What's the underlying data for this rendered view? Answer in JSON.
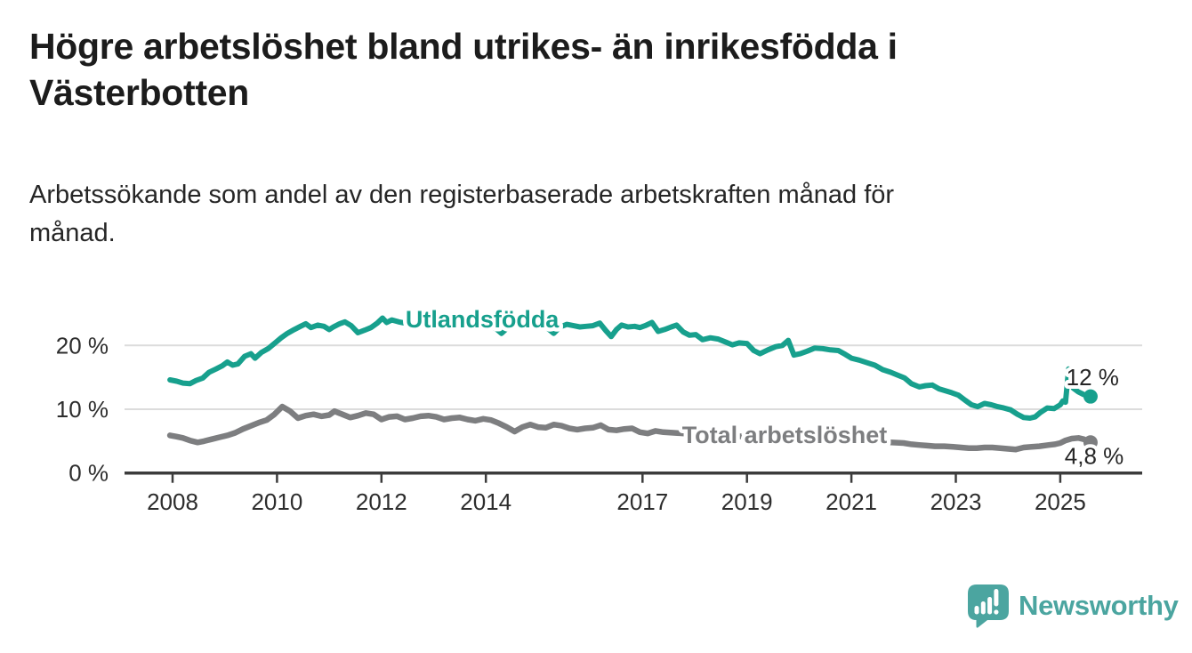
{
  "header": {
    "title_line1": "Högre arbetslöshet bland utrikes- än inrikesfödda i",
    "title_line2": "Västerbotten",
    "subtitle_line1": "Arbetssökande som andel av den registerbaserade arbetskraften månad för",
    "subtitle_line2": "månad."
  },
  "footer": {
    "brand": "Newsworthy",
    "logo_icon": "newsworthy-speech-bubble-bar-chart-icon",
    "brand_color": "#4ba5a0"
  },
  "chart_data": {
    "type": "line",
    "title": "Högre arbetslöshet bland utrikes- än inrikesfödda i Västerbotten",
    "subtitle": "Arbetssökande som andel av den registerbaserade arbetskraften månad för månad.",
    "unit": "%",
    "grid": true,
    "grid_color": "#dcdcdc",
    "axis_color": "#3c3c3c",
    "text_color": "#2d2d2d",
    "annotation_color": "#262626",
    "x_axis": {
      "ticks": [
        2008,
        2010,
        2012,
        2014,
        2017,
        2019,
        2021,
        2023,
        2025
      ],
      "tick_labels": [
        "2008",
        "2010",
        "2012",
        "2014",
        "2017",
        "2019",
        "2021",
        "2023",
        "2025"
      ],
      "min": 2007.1,
      "max": 2026.6
    },
    "y_axis": {
      "ticks": [
        0,
        10,
        20
      ],
      "tick_labels": [
        "0 %",
        "10 %",
        "20 %"
      ],
      "min": 0,
      "max": 27
    },
    "series": [
      {
        "name": "Utlandsfödda",
        "color": "#17a08d",
        "end_label": "12 %",
        "end_value": 12.0,
        "label_pos": {
          "x": 2013.93,
          "y": 24.1
        },
        "end_label_pos": {
          "x": 2025.62,
          "y": 15.0
        },
        "points": [
          [
            2007.95,
            14.6
          ],
          [
            2008.08,
            14.4
          ],
          [
            2008.2,
            14.1
          ],
          [
            2008.33,
            14.0
          ],
          [
            2008.45,
            14.5
          ],
          [
            2008.58,
            14.9
          ],
          [
            2008.7,
            15.8
          ],
          [
            2008.83,
            16.3
          ],
          [
            2008.95,
            16.8
          ],
          [
            2009.05,
            17.4
          ],
          [
            2009.15,
            16.9
          ],
          [
            2009.25,
            17.1
          ],
          [
            2009.38,
            18.3
          ],
          [
            2009.5,
            18.7
          ],
          [
            2009.58,
            18.0
          ],
          [
            2009.7,
            18.9
          ],
          [
            2009.83,
            19.5
          ],
          [
            2009.95,
            20.3
          ],
          [
            2010.08,
            21.2
          ],
          [
            2010.2,
            21.9
          ],
          [
            2010.33,
            22.5
          ],
          [
            2010.45,
            23.0
          ],
          [
            2010.55,
            23.4
          ],
          [
            2010.65,
            22.8
          ],
          [
            2010.78,
            23.2
          ],
          [
            2010.9,
            23.0
          ],
          [
            2011.0,
            22.5
          ],
          [
            2011.08,
            22.9
          ],
          [
            2011.2,
            23.4
          ],
          [
            2011.3,
            23.7
          ],
          [
            2011.42,
            23.1
          ],
          [
            2011.55,
            22.0
          ],
          [
            2011.68,
            22.4
          ],
          [
            2011.8,
            22.8
          ],
          [
            2011.92,
            23.5
          ],
          [
            2012.02,
            24.3
          ],
          [
            2012.1,
            23.6
          ],
          [
            2012.2,
            24.0
          ],
          [
            2012.33,
            23.7
          ],
          [
            2012.45,
            23.5
          ],
          [
            2012.58,
            23.7
          ],
          [
            2012.7,
            23.9
          ],
          [
            2012.83,
            23.6
          ],
          [
            2012.95,
            23.4
          ],
          [
            2013.08,
            23.7
          ],
          [
            2013.2,
            23.9
          ],
          [
            2013.33,
            23.5
          ],
          [
            2013.45,
            23.7
          ],
          [
            2013.58,
            23.4
          ],
          [
            2013.7,
            23.2
          ],
          [
            2013.83,
            23.6
          ],
          [
            2013.95,
            23.5
          ],
          [
            2014.08,
            23.1
          ],
          [
            2014.2,
            22.6
          ],
          [
            2014.3,
            21.9
          ],
          [
            2014.42,
            22.8
          ],
          [
            2014.55,
            23.3
          ],
          [
            2014.68,
            23.6
          ],
          [
            2014.8,
            23.4
          ],
          [
            2014.92,
            23.2
          ],
          [
            2015.05,
            23.4
          ],
          [
            2015.18,
            22.7
          ],
          [
            2015.3,
            21.9
          ],
          [
            2015.42,
            22.9
          ],
          [
            2015.55,
            23.3
          ],
          [
            2015.68,
            23.1
          ],
          [
            2015.8,
            22.9
          ],
          [
            2015.92,
            23.0
          ],
          [
            2016.05,
            23.1
          ],
          [
            2016.18,
            23.5
          ],
          [
            2016.3,
            22.3
          ],
          [
            2016.4,
            21.4
          ],
          [
            2016.5,
            22.5
          ],
          [
            2016.6,
            23.2
          ],
          [
            2016.72,
            22.9
          ],
          [
            2016.85,
            23.0
          ],
          [
            2016.95,
            22.8
          ],
          [
            2017.05,
            23.1
          ],
          [
            2017.18,
            23.6
          ],
          [
            2017.3,
            22.2
          ],
          [
            2017.42,
            22.5
          ],
          [
            2017.55,
            22.9
          ],
          [
            2017.65,
            23.2
          ],
          [
            2017.78,
            22.1
          ],
          [
            2017.9,
            21.6
          ],
          [
            2018.02,
            21.7
          ],
          [
            2018.15,
            20.9
          ],
          [
            2018.3,
            21.2
          ],
          [
            2018.45,
            21.0
          ],
          [
            2018.6,
            20.5
          ],
          [
            2018.72,
            20.1
          ],
          [
            2018.85,
            20.4
          ],
          [
            2019.0,
            20.3
          ],
          [
            2019.13,
            19.2
          ],
          [
            2019.25,
            18.7
          ],
          [
            2019.4,
            19.3
          ],
          [
            2019.55,
            19.8
          ],
          [
            2019.68,
            20.0
          ],
          [
            2019.79,
            20.8
          ],
          [
            2019.9,
            18.5
          ],
          [
            2020.02,
            18.7
          ],
          [
            2020.15,
            19.1
          ],
          [
            2020.3,
            19.6
          ],
          [
            2020.45,
            19.5
          ],
          [
            2020.6,
            19.3
          ],
          [
            2020.75,
            19.2
          ],
          [
            2020.88,
            18.6
          ],
          [
            2021.0,
            18.0
          ],
          [
            2021.15,
            17.7
          ],
          [
            2021.3,
            17.3
          ],
          [
            2021.45,
            16.9
          ],
          [
            2021.6,
            16.2
          ],
          [
            2021.75,
            15.8
          ],
          [
            2021.9,
            15.3
          ],
          [
            2022.02,
            14.9
          ],
          [
            2022.15,
            14.0
          ],
          [
            2022.3,
            13.5
          ],
          [
            2022.42,
            13.7
          ],
          [
            2022.55,
            13.8
          ],
          [
            2022.68,
            13.2
          ],
          [
            2022.8,
            12.9
          ],
          [
            2022.92,
            12.6
          ],
          [
            2023.05,
            12.2
          ],
          [
            2023.18,
            11.4
          ],
          [
            2023.3,
            10.7
          ],
          [
            2023.42,
            10.4
          ],
          [
            2023.55,
            10.9
          ],
          [
            2023.68,
            10.7
          ],
          [
            2023.8,
            10.4
          ],
          [
            2023.92,
            10.2
          ],
          [
            2024.05,
            9.9
          ],
          [
            2024.18,
            9.2
          ],
          [
            2024.3,
            8.7
          ],
          [
            2024.42,
            8.6
          ],
          [
            2024.52,
            8.8
          ],
          [
            2024.62,
            9.5
          ],
          [
            2024.75,
            10.2
          ],
          [
            2024.88,
            10.1
          ],
          [
            2025.0,
            10.7
          ],
          [
            2025.05,
            11.3
          ],
          [
            2025.1,
            11.1
          ],
          [
            2025.16,
            16.3
          ],
          [
            2025.25,
            13.3
          ],
          [
            2025.35,
            12.7
          ],
          [
            2025.45,
            12.3
          ],
          [
            2025.58,
            12.0
          ]
        ]
      },
      {
        "name": "Total arbetslöshet",
        "color": "#7d7e80",
        "end_label": "4,8 %",
        "end_value": 4.8,
        "label_pos": {
          "x": 2019.72,
          "y": 5.95
        },
        "end_label_pos": {
          "x": 2025.65,
          "y": 2.7
        },
        "points": [
          [
            2007.95,
            5.9
          ],
          [
            2008.08,
            5.7
          ],
          [
            2008.2,
            5.5
          ],
          [
            2008.33,
            5.1
          ],
          [
            2008.48,
            4.8
          ],
          [
            2008.6,
            5.0
          ],
          [
            2008.75,
            5.3
          ],
          [
            2008.9,
            5.6
          ],
          [
            2009.05,
            5.9
          ],
          [
            2009.2,
            6.3
          ],
          [
            2009.35,
            6.9
          ],
          [
            2009.5,
            7.4
          ],
          [
            2009.65,
            7.9
          ],
          [
            2009.8,
            8.3
          ],
          [
            2009.95,
            9.2
          ],
          [
            2010.1,
            10.4
          ],
          [
            2010.25,
            9.7
          ],
          [
            2010.4,
            8.6
          ],
          [
            2010.55,
            9.0
          ],
          [
            2010.7,
            9.2
          ],
          [
            2010.85,
            8.9
          ],
          [
            2011.0,
            9.1
          ],
          [
            2011.1,
            9.7
          ],
          [
            2011.25,
            9.2
          ],
          [
            2011.4,
            8.7
          ],
          [
            2011.55,
            9.0
          ],
          [
            2011.7,
            9.4
          ],
          [
            2011.85,
            9.2
          ],
          [
            2012.0,
            8.4
          ],
          [
            2012.15,
            8.8
          ],
          [
            2012.3,
            8.9
          ],
          [
            2012.45,
            8.4
          ],
          [
            2012.6,
            8.6
          ],
          [
            2012.75,
            8.9
          ],
          [
            2012.9,
            9.0
          ],
          [
            2013.05,
            8.8
          ],
          [
            2013.2,
            8.4
          ],
          [
            2013.35,
            8.6
          ],
          [
            2013.5,
            8.7
          ],
          [
            2013.65,
            8.4
          ],
          [
            2013.8,
            8.2
          ],
          [
            2013.95,
            8.5
          ],
          [
            2014.1,
            8.3
          ],
          [
            2014.25,
            7.8
          ],
          [
            2014.4,
            7.2
          ],
          [
            2014.55,
            6.5
          ],
          [
            2014.7,
            7.2
          ],
          [
            2014.85,
            7.6
          ],
          [
            2015.0,
            7.2
          ],
          [
            2015.15,
            7.1
          ],
          [
            2015.3,
            7.6
          ],
          [
            2015.45,
            7.4
          ],
          [
            2015.6,
            7.0
          ],
          [
            2015.75,
            6.8
          ],
          [
            2015.9,
            7.0
          ],
          [
            2016.05,
            7.1
          ],
          [
            2016.2,
            7.5
          ],
          [
            2016.35,
            6.8
          ],
          [
            2016.5,
            6.7
          ],
          [
            2016.65,
            6.9
          ],
          [
            2016.8,
            7.0
          ],
          [
            2016.95,
            6.4
          ],
          [
            2017.1,
            6.2
          ],
          [
            2017.25,
            6.6
          ],
          [
            2017.4,
            6.4
          ],
          [
            2017.6,
            6.3
          ],
          [
            2017.8,
            6.2
          ],
          [
            2018.0,
            6.1
          ],
          [
            2018.25,
            6.0
          ],
          [
            2018.5,
            5.9
          ],
          [
            2018.75,
            5.8
          ],
          [
            2019.0,
            5.7
          ],
          [
            2019.25,
            5.6
          ],
          [
            2019.5,
            5.6
          ],
          [
            2019.75,
            5.5
          ],
          [
            2020.0,
            5.5
          ],
          [
            2020.25,
            5.6
          ],
          [
            2020.5,
            5.6
          ],
          [
            2020.75,
            5.4
          ],
          [
            2021.0,
            5.3
          ],
          [
            2021.25,
            5.2
          ],
          [
            2021.5,
            5.0
          ],
          [
            2021.75,
            4.8
          ],
          [
            2022.0,
            4.7
          ],
          [
            2022.15,
            4.5
          ],
          [
            2022.3,
            4.4
          ],
          [
            2022.45,
            4.3
          ],
          [
            2022.6,
            4.2
          ],
          [
            2022.78,
            4.2
          ],
          [
            2022.95,
            4.1
          ],
          [
            2023.1,
            4.0
          ],
          [
            2023.25,
            3.9
          ],
          [
            2023.4,
            3.9
          ],
          [
            2023.55,
            4.0
          ],
          [
            2023.7,
            4.0
          ],
          [
            2023.85,
            3.9
          ],
          [
            2024.0,
            3.8
          ],
          [
            2024.15,
            3.7
          ],
          [
            2024.3,
            4.0
          ],
          [
            2024.45,
            4.1
          ],
          [
            2024.6,
            4.2
          ],
          [
            2024.78,
            4.4
          ],
          [
            2024.9,
            4.5
          ],
          [
            2025.0,
            4.7
          ],
          [
            2025.1,
            5.1
          ],
          [
            2025.22,
            5.4
          ],
          [
            2025.35,
            5.5
          ],
          [
            2025.45,
            5.3
          ],
          [
            2025.58,
            4.8
          ]
        ]
      }
    ]
  }
}
